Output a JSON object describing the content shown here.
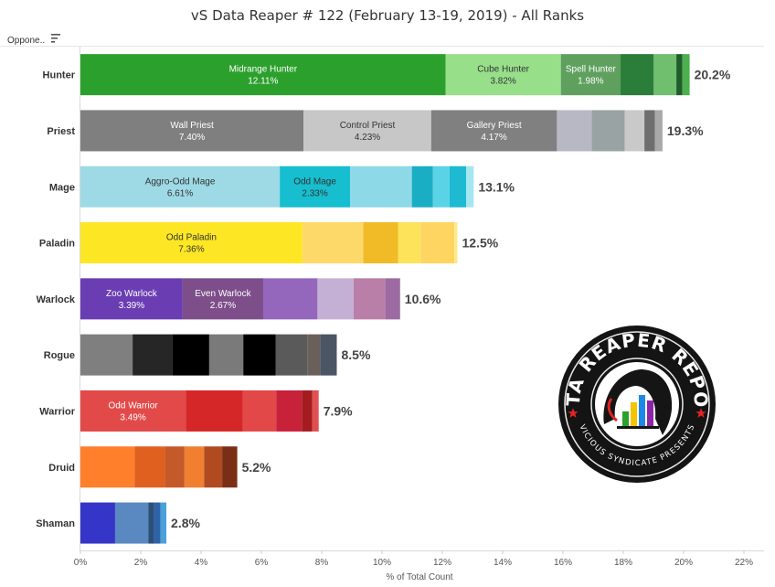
{
  "header": {
    "title": "vS Data Reaper # 122 (February 13-19, 2019) - All Ranks",
    "filter_label": "Oppone.."
  },
  "logo": {
    "name": "data-reaper-report-logo",
    "text_top": "DATA REAPER REPORT",
    "text_bottom": "VICIOUS SYNDICATE PRESENTS"
  },
  "chart_data": {
    "type": "bar",
    "orientation": "horizontal",
    "stacked": true,
    "title": "vS Data Reaper # 122 (February 13-19, 2019) - All Ranks",
    "xlabel": "% of Total Count",
    "ylabel": "",
    "xlim": [
      0,
      22
    ],
    "xticks": [
      "0%",
      "2%",
      "4%",
      "6%",
      "8%",
      "10%",
      "12%",
      "14%",
      "16%",
      "18%",
      "20%",
      "22%"
    ],
    "grid": false,
    "categories": [
      {
        "name": "Hunter",
        "total_label": "20.2%",
        "segments": [
          {
            "name": "Midrange Hunter",
            "value": 12.11,
            "label": "12.11%",
            "color": "#2ca02c",
            "text_color": "#ffffff"
          },
          {
            "name": "Cube Hunter",
            "value": 3.82,
            "label": "3.82%",
            "color": "#98df8a",
            "text_color": "#333333"
          },
          {
            "name": "Spell Hunter",
            "value": 1.98,
            "label": "1.98%",
            "color": "#5fa05f",
            "text_color": "#ffffff"
          },
          {
            "value": 1.1,
            "color": "#2b7d3a"
          },
          {
            "value": 0.75,
            "color": "#6fbf6f"
          },
          {
            "value": 0.2,
            "color": "#1f5e2a"
          },
          {
            "value": 0.24,
            "color": "#4caf50"
          }
        ]
      },
      {
        "name": "Priest",
        "total_label": "19.3%",
        "segments": [
          {
            "name": "Wall Priest",
            "value": 7.4,
            "label": "7.40%",
            "color": "#7f7f7f",
            "text_color": "#ffffff"
          },
          {
            "name": "Control Priest",
            "value": 4.23,
            "label": "4.23%",
            "color": "#c7c7c7",
            "text_color": "#333333"
          },
          {
            "name": "Gallery Priest",
            "value": 4.17,
            "label": "4.17%",
            "color": "#808080",
            "text_color": "#ffffff"
          },
          {
            "value": 1.15,
            "color": "#b8b8c5"
          },
          {
            "value": 1.1,
            "color": "#9aa3a3"
          },
          {
            "value": 0.65,
            "color": "#c9c9c9"
          },
          {
            "value": 0.35,
            "color": "#6e6e6e"
          },
          {
            "value": 0.25,
            "color": "#a9a9a9"
          }
        ]
      },
      {
        "name": "Mage",
        "total_label": "13.1%",
        "segments": [
          {
            "name": "Aggro-Odd Mage",
            "value": 6.61,
            "label": "6.61%",
            "color": "#9edae5",
            "text_color": "#333333"
          },
          {
            "name": "Odd Mage",
            "value": 2.33,
            "label": "2.33%",
            "color": "#17becf",
            "text_color": "#333333"
          },
          {
            "value": 2.05,
            "color": "#8ed9e8"
          },
          {
            "value": 0.7,
            "color": "#1aaec4"
          },
          {
            "value": 0.55,
            "color": "#5bd3e6"
          },
          {
            "value": 0.55,
            "color": "#1ebad2"
          },
          {
            "value": 0.25,
            "color": "#a6e6f0"
          }
        ]
      },
      {
        "name": "Paladin",
        "total_label": "12.5%",
        "segments": [
          {
            "name": "Odd Paladin",
            "value": 7.36,
            "label": "7.36%",
            "color": "#fde725",
            "text_color": "#333333"
          },
          {
            "value": 2.02,
            "color": "#fdd96a"
          },
          {
            "value": 1.15,
            "color": "#f0bb26"
          },
          {
            "value": 0.75,
            "color": "#fde35a"
          },
          {
            "value": 1.12,
            "color": "#fdd560"
          },
          {
            "value": 0.1,
            "color": "#fde98a"
          }
        ]
      },
      {
        "name": "Warlock",
        "total_label": "10.6%",
        "segments": [
          {
            "name": "Zoo Warlock",
            "value": 3.39,
            "label": "3.39%",
            "color": "#6a3db3",
            "text_color": "#ffffff"
          },
          {
            "name": "Even Warlock",
            "value": 2.67,
            "label": "2.67%",
            "color": "#7d4e8a",
            "text_color": "#ffffff"
          },
          {
            "value": 1.8,
            "color": "#9467bd"
          },
          {
            "value": 1.2,
            "color": "#c5b0d5"
          },
          {
            "value": 1.05,
            "color": "#b97fa8"
          },
          {
            "value": 0.49,
            "color": "#9d6aa3"
          }
        ]
      },
      {
        "name": "Rogue",
        "total_label": "8.5%",
        "segments": [
          {
            "value": 1.73,
            "color": "#7f7f7f"
          },
          {
            "value": 1.32,
            "color": "#262626"
          },
          {
            "value": 1.22,
            "color": "#000000"
          },
          {
            "value": 1.13,
            "color": "#7a7a7a"
          },
          {
            "value": 1.07,
            "color": "#000000"
          },
          {
            "value": 1.05,
            "color": "#5a5a5a"
          },
          {
            "value": 0.43,
            "color": "#6b5f5a"
          },
          {
            "value": 0.55,
            "color": "#4c5563"
          }
        ]
      },
      {
        "name": "Warrior",
        "total_label": "7.9%",
        "segments": [
          {
            "name": "Odd Warrior",
            "value": 3.49,
            "label": "3.49%",
            "color": "#e24a4a",
            "text_color": "#ffffff"
          },
          {
            "value": 1.9,
            "color": "#d62728"
          },
          {
            "value": 1.1,
            "color": "#e34848"
          },
          {
            "value": 0.85,
            "color": "#c8223a"
          },
          {
            "value": 0.35,
            "color": "#a51c20"
          },
          {
            "value": 0.21,
            "color": "#e05050"
          }
        ]
      },
      {
        "name": "Druid",
        "total_label": "5.2%",
        "segments": [
          {
            "value": 1.8,
            "color": "#ff7f2a"
          },
          {
            "value": 1.0,
            "color": "#e0601f"
          },
          {
            "value": 0.65,
            "color": "#c45a2a"
          },
          {
            "value": 0.65,
            "color": "#f08030"
          },
          {
            "value": 0.6,
            "color": "#b04a20"
          },
          {
            "value": 0.5,
            "color": "#7a2e16"
          }
        ]
      },
      {
        "name": "Shaman",
        "total_label": "2.8%",
        "segments": [
          {
            "value": 1.15,
            "color": "#3535c8"
          },
          {
            "value": 1.1,
            "color": "#5a88c0"
          },
          {
            "value": 0.2,
            "color": "#2a4f7a"
          },
          {
            "value": 0.2,
            "color": "#2e62a8"
          },
          {
            "value": 0.2,
            "color": "#4aa0d8"
          }
        ]
      }
    ]
  }
}
